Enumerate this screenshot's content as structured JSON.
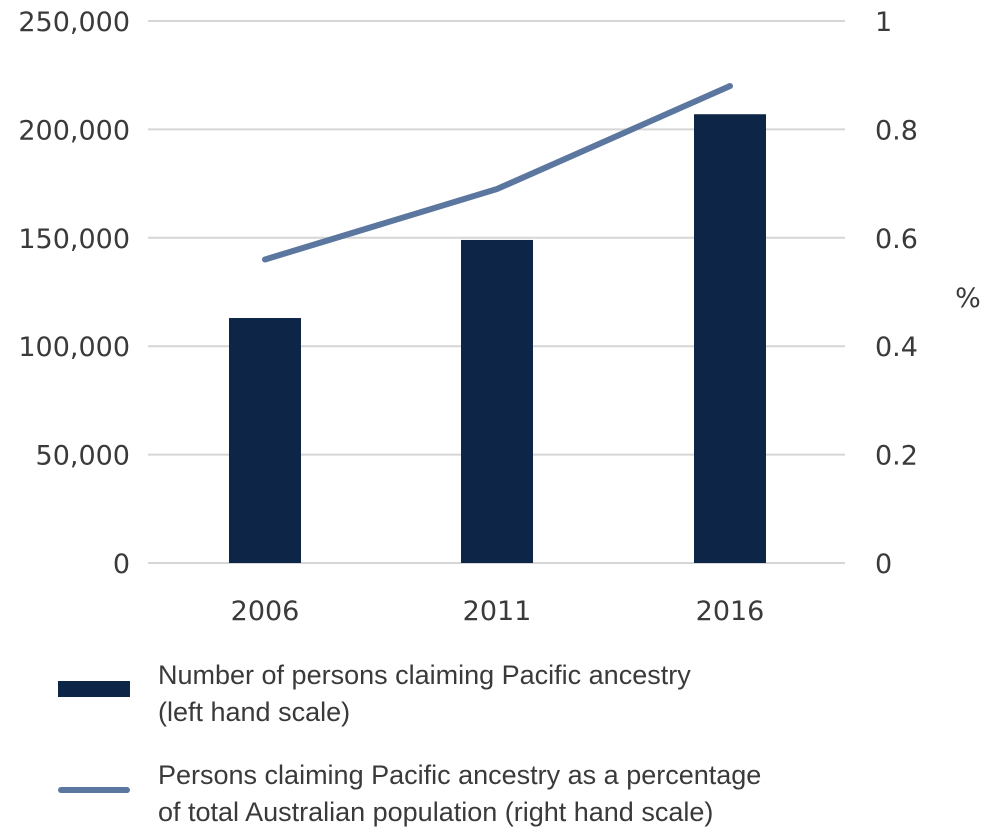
{
  "chart_data": {
    "type": "bar",
    "categories": [
      "2006",
      "2011",
      "2016"
    ],
    "series": [
      {
        "name": "Number of persons claiming Pacific ancestry (left hand scale)",
        "type": "bar",
        "axis": "left",
        "color": "#0d2547",
        "values": [
          113000,
          149000,
          207000
        ]
      },
      {
        "name": "Persons claiming Pacific ancestry as a percentage of total Australian population (right hand scale)",
        "type": "line",
        "axis": "right",
        "color": "#5b77a0",
        "values": [
          0.56,
          0.69,
          0.88
        ]
      }
    ],
    "y_left": {
      "lim": [
        0,
        250000
      ],
      "ticks": [
        "250,000",
        "200,000",
        "150,000",
        "100,000",
        "50,000",
        "0"
      ]
    },
    "y_right": {
      "lim": [
        0,
        1
      ],
      "label": "%",
      "ticks": [
        "1",
        "0.8",
        "0.6",
        "0.4",
        "0.2",
        "0"
      ]
    },
    "grid": true,
    "legend": {
      "position": "bottom",
      "items": [
        {
          "lines": [
            "Number of persons claiming Pacific ancestry",
            "(left hand scale)"
          ],
          "kind": "bar",
          "color": "#0d2547"
        },
        {
          "lines": [
            "Persons claiming Pacific ancestry as a percentage",
            "of total Australian population (right hand scale)"
          ],
          "kind": "line",
          "color": "#5b77a0"
        }
      ]
    }
  }
}
